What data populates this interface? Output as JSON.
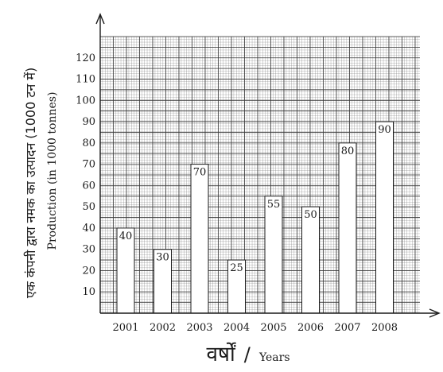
{
  "chart_data": {
    "type": "bar",
    "categories": [
      "2001",
      "2002",
      "2003",
      "2004",
      "2005",
      "2006",
      "2007",
      "2008"
    ],
    "values": [
      40,
      30,
      70,
      25,
      55,
      50,
      80,
      90
    ],
    "data_labels": [
      "40",
      "30",
      "70",
      "25",
      "55",
      "50",
      "80",
      "90"
    ],
    "ylabel_hindi": "एक कंपनी द्वारा नमक का उत्पादन (1000 टन में)",
    "ylabel": "Production (in 1000 tonnes)",
    "xlabel_hindi": "वर्षों",
    "xlabel_separator": "/",
    "xlabel": "Years",
    "ylim": [
      0,
      130
    ],
    "yticks": [
      10,
      20,
      30,
      40,
      50,
      60,
      70,
      80,
      90,
      100,
      110,
      120
    ],
    "grid": true,
    "legend": "none"
  }
}
